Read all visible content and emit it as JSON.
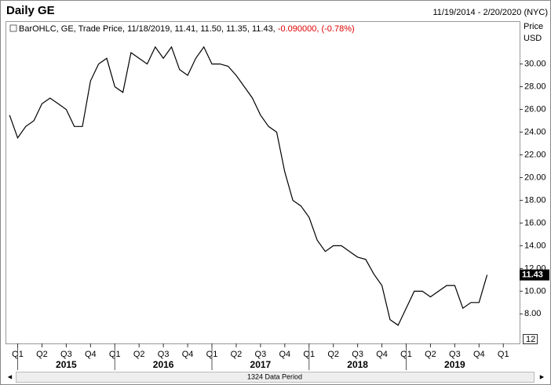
{
  "chart_data": {
    "type": "line",
    "title": "Daily GE",
    "date_range": "11/19/2014 - 2/20/2020 (NYC)",
    "legend_text": "BarOHLC, GE, Trade Price, 11/18/2019, 11.41, 11.50, 11.35, 11.43,",
    "legend_change": "-0.090000, (-0.78%)",
    "y_label": "Price",
    "y_unit": "USD",
    "footer": "1324 Data Period",
    "zoom_label": "12",
    "xlim": [
      "2014-11-19",
      "2020-02-20"
    ],
    "ylim": [
      5.4,
      33.7
    ],
    "yticks": [
      {
        "value": 8,
        "label": "8.00"
      },
      {
        "value": 10,
        "label": "10.00"
      },
      {
        "value": 12,
        "label": "12.00"
      },
      {
        "value": 14,
        "label": "14.00"
      },
      {
        "value": 16,
        "label": "16.00"
      },
      {
        "value": 18,
        "label": "18.00"
      },
      {
        "value": 20,
        "label": "20.00"
      },
      {
        "value": 22,
        "label": "22.00"
      },
      {
        "value": 24,
        "label": "24.00"
      },
      {
        "value": 26,
        "label": "26.00"
      },
      {
        "value": 28,
        "label": "28.00"
      },
      {
        "value": 30,
        "label": "30.00"
      }
    ],
    "xticks": [
      {
        "value": "2015-01-01",
        "label": "Q1"
      },
      {
        "value": "2015-04-01",
        "label": "Q2"
      },
      {
        "value": "2015-07-01",
        "label": "Q3"
      },
      {
        "value": "2015-10-01",
        "label": "Q4"
      },
      {
        "value": "2016-01-01",
        "label": "Q1"
      },
      {
        "value": "2016-04-01",
        "label": "Q2"
      },
      {
        "value": "2016-07-01",
        "label": "Q3"
      },
      {
        "value": "2016-10-01",
        "label": "Q4"
      },
      {
        "value": "2017-01-01",
        "label": "Q1"
      },
      {
        "value": "2017-04-01",
        "label": "Q2"
      },
      {
        "value": "2017-07-01",
        "label": "Q3"
      },
      {
        "value": "2017-10-01",
        "label": "Q4"
      },
      {
        "value": "2018-01-01",
        "label": "Q1"
      },
      {
        "value": "2018-04-01",
        "label": "Q2"
      },
      {
        "value": "2018-07-01",
        "label": "Q3"
      },
      {
        "value": "2018-10-01",
        "label": "Q4"
      },
      {
        "value": "2019-01-01",
        "label": "Q1"
      },
      {
        "value": "2019-04-01",
        "label": "Q2"
      },
      {
        "value": "2019-07-01",
        "label": "Q3"
      },
      {
        "value": "2019-10-01",
        "label": "Q4"
      },
      {
        "value": "2020-01-01",
        "label": "Q1"
      }
    ],
    "years": [
      2015,
      2016,
      2017,
      2018,
      2019
    ],
    "series": [
      {
        "name": "GE",
        "color": "#000000",
        "x": [
          "2014-12",
          "2015-01",
          "2015-02",
          "2015-03",
          "2015-04",
          "2015-05",
          "2015-06",
          "2015-07",
          "2015-08",
          "2015-09",
          "2015-10",
          "2015-11",
          "2015-12",
          "2016-01",
          "2016-02",
          "2016-03",
          "2016-04",
          "2016-05",
          "2016-06",
          "2016-07",
          "2016-08",
          "2016-09",
          "2016-10",
          "2016-11",
          "2016-12",
          "2017-01",
          "2017-02",
          "2017-03",
          "2017-04",
          "2017-05",
          "2017-06",
          "2017-07",
          "2017-08",
          "2017-09",
          "2017-10",
          "2017-11",
          "2017-12",
          "2018-01",
          "2018-02",
          "2018-03",
          "2018-04",
          "2018-05",
          "2018-06",
          "2018-07",
          "2018-08",
          "2018-09",
          "2018-10",
          "2018-11",
          "2018-12",
          "2019-01",
          "2019-02",
          "2019-03",
          "2019-04",
          "2019-05",
          "2019-06",
          "2019-07",
          "2019-08",
          "2019-09",
          "2019-10",
          "2019-11"
        ],
        "values": [
          25.5,
          23.5,
          24.5,
          25,
          26.5,
          27,
          26.5,
          26,
          24.5,
          24.5,
          28.5,
          30,
          30.5,
          28,
          27.5,
          31,
          30.5,
          30,
          31.5,
          30.5,
          31.5,
          29.5,
          29,
          30.5,
          31.5,
          30,
          30,
          29.8,
          29,
          28,
          27,
          25.5,
          24.5,
          24,
          20.5,
          18,
          17.5,
          16.5,
          14.5,
          13.5,
          14,
          14,
          13.5,
          13,
          12.8,
          11.5,
          10.5,
          7.5,
          7,
          8.5,
          10,
          10,
          9.5,
          10,
          10.5,
          10.5,
          8.5,
          9,
          9,
          11.43
        ]
      }
    ]
  }
}
